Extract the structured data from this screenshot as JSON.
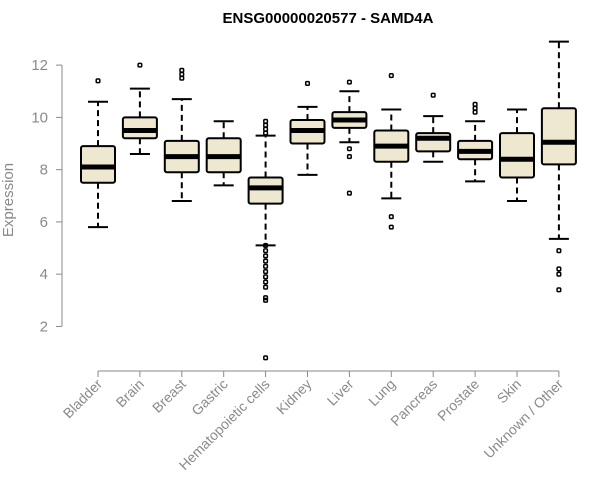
{
  "chart_data": {
    "type": "boxplot",
    "title": "ENSG00000020577 - SAMD4A",
    "xlabel": "",
    "ylabel": "Expression",
    "ylim": [
      0.6,
      13.0
    ],
    "yticks": [
      2,
      4,
      6,
      8,
      10,
      12
    ],
    "box_fill": "#efe8d0",
    "categories": [
      "Bladder",
      "Brain",
      "Breast",
      "Gastric",
      "Hematopoietic cells",
      "Kidney",
      "Liver",
      "Lung",
      "Pancreas",
      "Prostate",
      "Skin",
      "Unknown / Other"
    ],
    "series": [
      {
        "name": "Bladder",
        "whisker_low": 5.8,
        "q1": 7.5,
        "median": 8.1,
        "q3": 8.9,
        "whisker_high": 10.6,
        "outliers": [
          11.4
        ]
      },
      {
        "name": "Brain",
        "whisker_low": 8.6,
        "q1": 9.2,
        "median": 9.5,
        "q3": 10.0,
        "whisker_high": 11.1,
        "outliers": [
          12.0
        ]
      },
      {
        "name": "Breast",
        "whisker_low": 6.8,
        "q1": 7.9,
        "median": 8.5,
        "q3": 9.1,
        "whisker_high": 10.7,
        "outliers": [
          11.5,
          11.65,
          11.8
        ]
      },
      {
        "name": "Gastric",
        "whisker_low": 7.4,
        "q1": 7.9,
        "median": 8.5,
        "q3": 9.2,
        "whisker_high": 9.85,
        "outliers": []
      },
      {
        "name": "Hematopoietic cells",
        "whisker_low": 5.1,
        "q1": 6.7,
        "median": 7.3,
        "q3": 7.7,
        "whisker_high": 9.3,
        "outliers": [
          9.4,
          9.55,
          9.7,
          9.85,
          5.1,
          4.9,
          4.7,
          4.5,
          4.3,
          4.1,
          3.9,
          3.7,
          3.5,
          3.1,
          3.0,
          0.8
        ]
      },
      {
        "name": "Kidney",
        "whisker_low": 7.8,
        "q1": 9.0,
        "median": 9.5,
        "q3": 9.9,
        "whisker_high": 10.4,
        "outliers": [
          11.3
        ]
      },
      {
        "name": "Liver",
        "whisker_low": 9.05,
        "q1": 9.6,
        "median": 9.9,
        "q3": 10.2,
        "whisker_high": 11.0,
        "outliers": [
          11.35,
          8.8,
          8.5,
          7.1
        ]
      },
      {
        "name": "Lung",
        "whisker_low": 6.9,
        "q1": 8.3,
        "median": 8.9,
        "q3": 9.5,
        "whisker_high": 10.3,
        "outliers": [
          11.6,
          6.2,
          5.8
        ]
      },
      {
        "name": "Pancreas",
        "whisker_low": 8.3,
        "q1": 8.7,
        "median": 9.2,
        "q3": 9.4,
        "whisker_high": 10.05,
        "outliers": [
          10.85
        ]
      },
      {
        "name": "Prostate",
        "whisker_low": 7.55,
        "q1": 8.4,
        "median": 8.7,
        "q3": 9.1,
        "whisker_high": 9.85,
        "outliers": [
          10.2,
          10.35,
          10.5
        ]
      },
      {
        "name": "Skin",
        "whisker_low": 6.8,
        "q1": 7.7,
        "median": 8.4,
        "q3": 9.4,
        "whisker_high": 10.3,
        "outliers": []
      },
      {
        "name": "Unknown / Other",
        "whisker_low": 5.35,
        "q1": 8.2,
        "median": 9.05,
        "q3": 10.35,
        "whisker_high": 12.9,
        "outliers": [
          4.9,
          4.2,
          4.0,
          3.4
        ]
      }
    ]
  }
}
